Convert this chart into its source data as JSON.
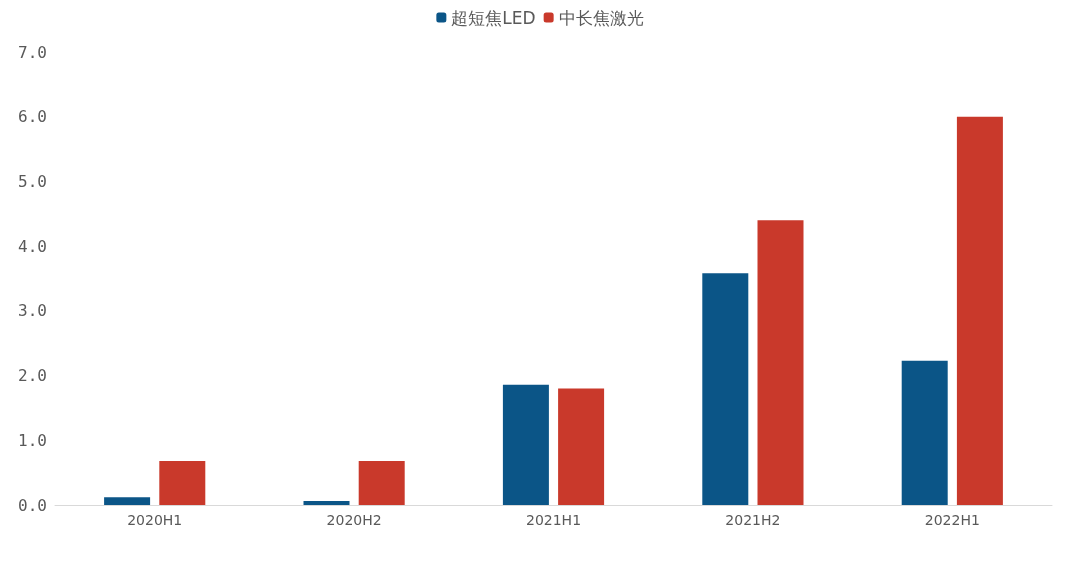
{
  "chart_data": {
    "type": "bar",
    "categories": [
      "2020H1",
      "2020H2",
      "2021H1",
      "2021H2",
      "2022H1"
    ],
    "series": [
      {
        "name": "超短焦LED",
        "color": "#0b5587",
        "values": [
          0.12,
          0.06,
          1.86,
          3.58,
          2.23
        ]
      },
      {
        "name": "中长焦激光",
        "color": "#c9392b",
        "values": [
          0.68,
          0.68,
          1.8,
          4.4,
          6.0
        ]
      }
    ],
    "ylim": [
      0,
      7
    ],
    "yticks": [
      {
        "value": 0,
        "label": "0.0"
      },
      {
        "value": 1,
        "label": "1.0"
      },
      {
        "value": 2,
        "label": "2.0"
      },
      {
        "value": 3,
        "label": "3.0"
      },
      {
        "value": 4,
        "label": "4.0"
      },
      {
        "value": 5,
        "label": "5.0"
      },
      {
        "value": 6,
        "label": "6.0"
      },
      {
        "value": 7,
        "label": "7.0"
      }
    ],
    "grid": false,
    "legend": "top"
  }
}
